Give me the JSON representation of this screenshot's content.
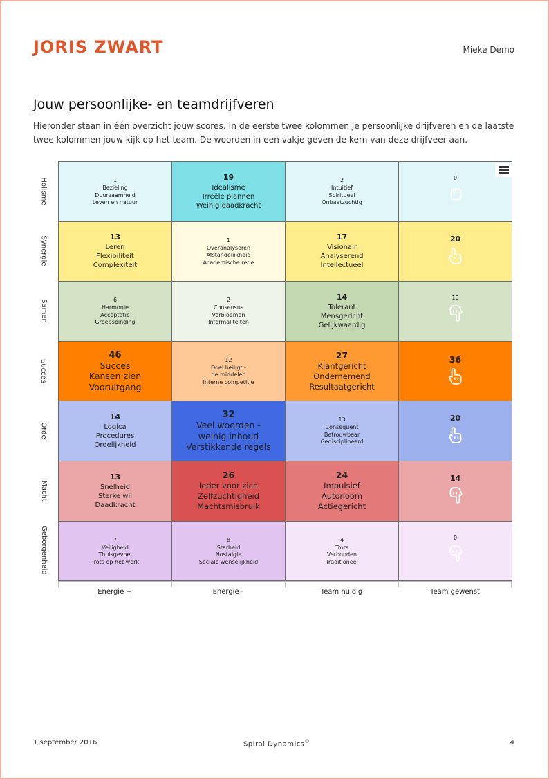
{
  "header": {
    "logo": "JORIS ZWART",
    "client": "Mieke Demo"
  },
  "page": {
    "title": "Jouw persoonlijke- en teamdrijfveren",
    "intro": "Hieronder staan in één overzicht jouw scores. In de eerste twee kolommen je persoonlijke drijfveren en de laatste twee kolommen jouw kijk op het team. De woorden in een vakje geven de kern van deze drijfveer aan."
  },
  "footer": {
    "date": "1 september 2016",
    "center": "Spiral Dynamics",
    "center_mark": "©",
    "page_number": "4"
  },
  "chart_data": {
    "type": "heatmap",
    "rows": [
      "Holisme",
      "Synergie",
      "Samen",
      "Succes",
      "Orde",
      "Macht",
      "Geborgenheid"
    ],
    "columns": [
      "Energie +",
      "Energie -",
      "Team huidig",
      "Team gewenst"
    ],
    "cells": [
      [
        {
          "score": "1",
          "keywords": [
            "Bezieling",
            "Duurzaamheid",
            "Leven en natuur"
          ],
          "color": "#e0f6f9",
          "size": "small"
        },
        {
          "score": "19",
          "keywords": [
            "Idealisme",
            "Irreële plannen",
            "Weinig daadkracht"
          ],
          "color": "#7ee0e6",
          "size": "medium"
        },
        {
          "score": "2",
          "keywords": [
            "Intuitief",
            "Spiritueel",
            "Onbaatzuchtig"
          ],
          "color": "#e0f6f9",
          "size": "small"
        },
        {
          "score": "0",
          "hand": "fist",
          "color": "#e0f6f9",
          "size": "small"
        }
      ],
      [
        {
          "score": "13",
          "keywords": [
            "Leren",
            "Flexibiliteit",
            "Complexiteit"
          ],
          "color": "#ffec8a",
          "size": "medium"
        },
        {
          "score": "1",
          "keywords": [
            "Overanalyseren",
            "Afstandelijkheid",
            "Academische rede"
          ],
          "color": "#fffae0",
          "size": "small"
        },
        {
          "score": "17",
          "keywords": [
            "Visionair",
            "Analyserend",
            "Intellectueel"
          ],
          "color": "#ffec8a",
          "size": "medium"
        },
        {
          "score": "20",
          "hand": "up",
          "color": "#ffec8a",
          "size": "medium"
        }
      ],
      [
        {
          "score": "6",
          "keywords": [
            "Harmonie",
            "Acceptatie",
            "Groepsbinding"
          ],
          "color": "#d4e3c6",
          "size": "small"
        },
        {
          "score": "2",
          "keywords": [
            "Consensus",
            "Verbloemen",
            "Informaliteiten"
          ],
          "color": "#eef4e8",
          "size": "small"
        },
        {
          "score": "14",
          "keywords": [
            "Tolerant",
            "Mensgericht",
            "Gelijkwaardig"
          ],
          "color": "#c4d9b1",
          "size": "medium"
        },
        {
          "score": "10",
          "hand": "down",
          "color": "#d4e3c6",
          "size": "small"
        }
      ],
      [
        {
          "score": "46",
          "keywords": [
            "Succes",
            "Kansen zien",
            "Vooruitgang"
          ],
          "color": "#ff8000",
          "size": "huge"
        },
        {
          "score": "12",
          "keywords": [
            "Doel heiligt -",
            "de middelen",
            "Interne competitie"
          ],
          "color": "#ffc896",
          "size": "small"
        },
        {
          "score": "27",
          "keywords": [
            "Klantgericht",
            "Ondernemend",
            "Resultaatgericht"
          ],
          "color": "#ff9a33",
          "size": "big"
        },
        {
          "score": "36",
          "hand": "up",
          "color": "#ff8000",
          "size": "big"
        }
      ],
      [
        {
          "score": "14",
          "keywords": [
            "Logica",
            "Procedures",
            "Ordelijkheid"
          ],
          "color": "#b3c0f2",
          "size": "medium"
        },
        {
          "score": "32",
          "keywords": [
            "Veel woorden -",
            "weinig inhoud",
            "Verstikkende regels"
          ],
          "color": "#4169e1",
          "size": "huge"
        },
        {
          "score": "13",
          "keywords": [
            "Consequent",
            "Betrouwbaar",
            "Gedisciplineerd"
          ],
          "color": "#b3c0f2",
          "size": "small"
        },
        {
          "score": "20",
          "hand": "up",
          "color": "#9db0ee",
          "size": "medium"
        }
      ],
      [
        {
          "score": "13",
          "keywords": [
            "Snelheid",
            "Sterke wil",
            "Daadkracht"
          ],
          "color": "#eba7a7",
          "size": "medium"
        },
        {
          "score": "26",
          "keywords": [
            "Ieder voor zich",
            "Zelfzuchtigheid",
            "Machtsmisbruik"
          ],
          "color": "#da5151",
          "size": "big"
        },
        {
          "score": "24",
          "keywords": [
            "Impulsief",
            "Autonoom",
            "Actiegericht"
          ],
          "color": "#e37979",
          "size": "big"
        },
        {
          "score": "14",
          "hand": "down",
          "color": "#eba7a7",
          "size": "medium"
        }
      ],
      [
        {
          "score": "7",
          "keywords": [
            "Veiligheid",
            "Thuisgevoel",
            "Trots op het werk"
          ],
          "color": "#e2c4f0",
          "size": "small"
        },
        {
          "score": "8",
          "keywords": [
            "Starheid",
            "Nostalgie",
            "Sociale wenselijkheid"
          ],
          "color": "#e2c4f0",
          "size": "small"
        },
        {
          "score": "4",
          "keywords": [
            "Trots",
            "Verbonden",
            "Traditioneel"
          ],
          "color": "#f5e6f9",
          "size": "small"
        },
        {
          "score": "0",
          "hand": "down",
          "color": "#f5e6f9",
          "size": "small"
        }
      ]
    ]
  }
}
